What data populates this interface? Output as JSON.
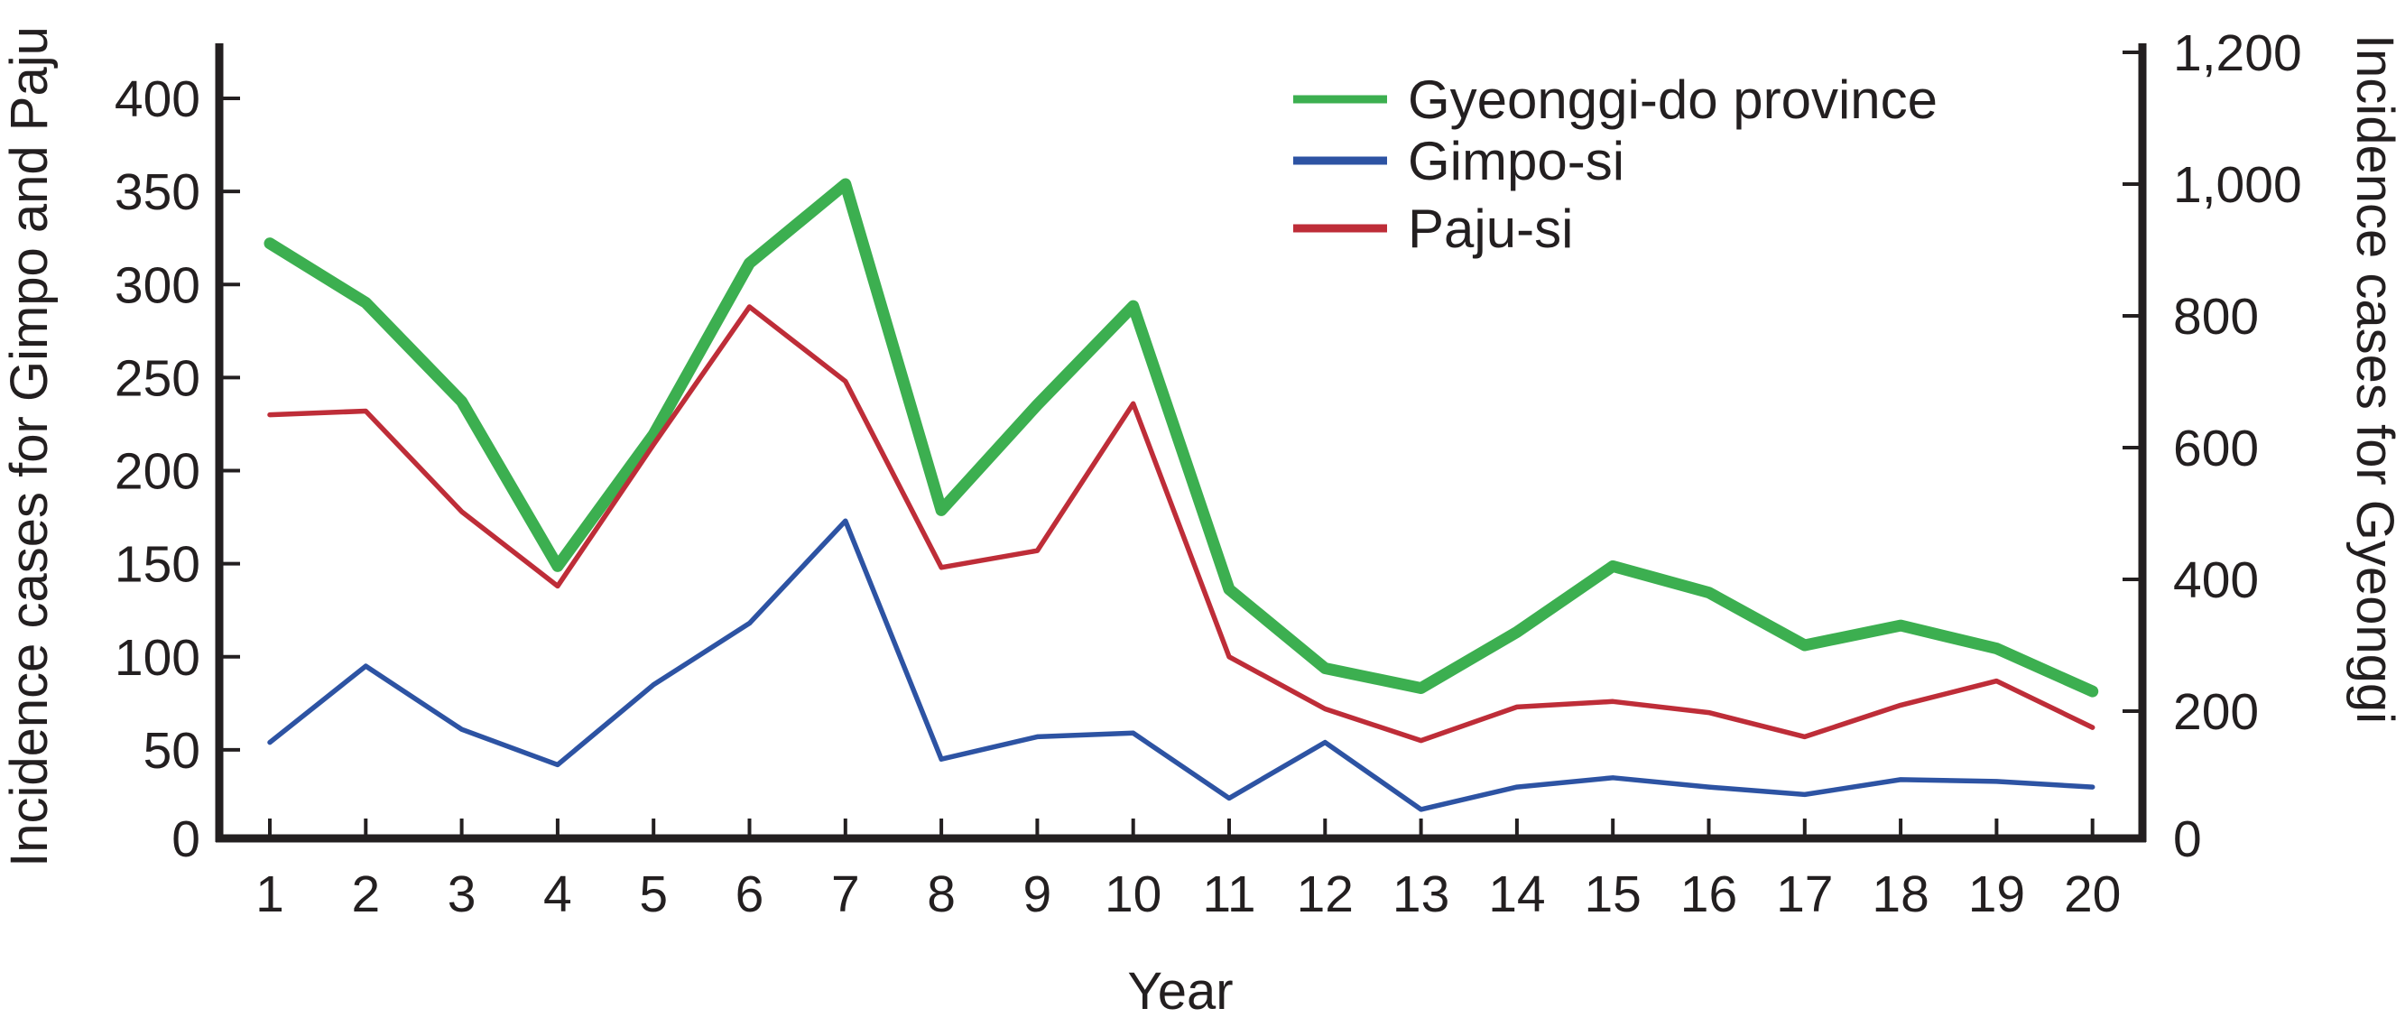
{
  "figure": {
    "left_axis_label": "Incidence cases for Gimpo and Paju",
    "right_axis_label": "Incidence cases for Gyeonggi",
    "x_axis_label": "Year"
  },
  "legend": [
    {
      "label": "Gyeonggi-do province",
      "color": "#3caf50",
      "series": "gyeonggi"
    },
    {
      "label": "Gimpo-si",
      "color": "#2d53a3",
      "series": "gimpo"
    },
    {
      "label": "Paju-si",
      "color": "#be2d38",
      "series": "paju"
    }
  ],
  "colors": {
    "gyeonggi": "#3caf50",
    "gimpo": "#2d53a3",
    "paju": "#be2d38",
    "axis": "#231f20"
  },
  "chart_data": {
    "type": "line",
    "title": "",
    "xlabel": "Year",
    "x": [
      1,
      2,
      3,
      4,
      5,
      6,
      7,
      8,
      9,
      10,
      11,
      12,
      13,
      14,
      15,
      16,
      17,
      18,
      19,
      20
    ],
    "x_tick_labels": [
      "1",
      "2",
      "3",
      "4",
      "5",
      "6",
      "7",
      "8",
      "9",
      "10",
      "11",
      "12",
      "13",
      "14",
      "15",
      "16",
      "17",
      "18",
      "19",
      "20"
    ],
    "left_ylabel": "Incidence cases for Gimpo and Paju",
    "right_ylabel": "Incidence cases for Gyeonggi",
    "left_ylim": [
      0,
      428
    ],
    "right_ylim": [
      0,
      1210
    ],
    "left_ticks": [
      0,
      50,
      100,
      150,
      200,
      250,
      300,
      350,
      400
    ],
    "right_ticks": [
      0,
      200,
      400,
      600,
      800,
      1000,
      1200
    ],
    "right_tick_labels": [
      "0",
      "200",
      "400",
      "600",
      "800",
      "1,000",
      "1,200"
    ],
    "grid": false,
    "legend_position": "inside-top-right",
    "series": [
      {
        "name": "Gyeonggi-do province",
        "axis": "right",
        "values": [
          910,
          820,
          670,
          420,
          620,
          880,
          1000,
          505,
          665,
          815,
          385,
          265,
          235,
          320,
          420,
          380,
          300,
          330,
          295,
          230
        ]
      },
      {
        "name": "Gimpo-si",
        "axis": "left",
        "values": [
          54,
          95,
          61,
          42,
          85,
          118,
          173,
          45,
          57,
          59,
          24,
          54,
          18,
          30,
          35,
          30,
          26,
          34,
          33,
          30
        ]
      },
      {
        "name": "Paju-si",
        "axis": "left",
        "values": [
          230,
          232,
          178,
          138,
          214,
          288,
          248,
          148,
          157,
          236,
          100,
          72,
          55,
          73,
          76,
          70,
          57,
          74,
          87,
          62
        ]
      }
    ]
  }
}
